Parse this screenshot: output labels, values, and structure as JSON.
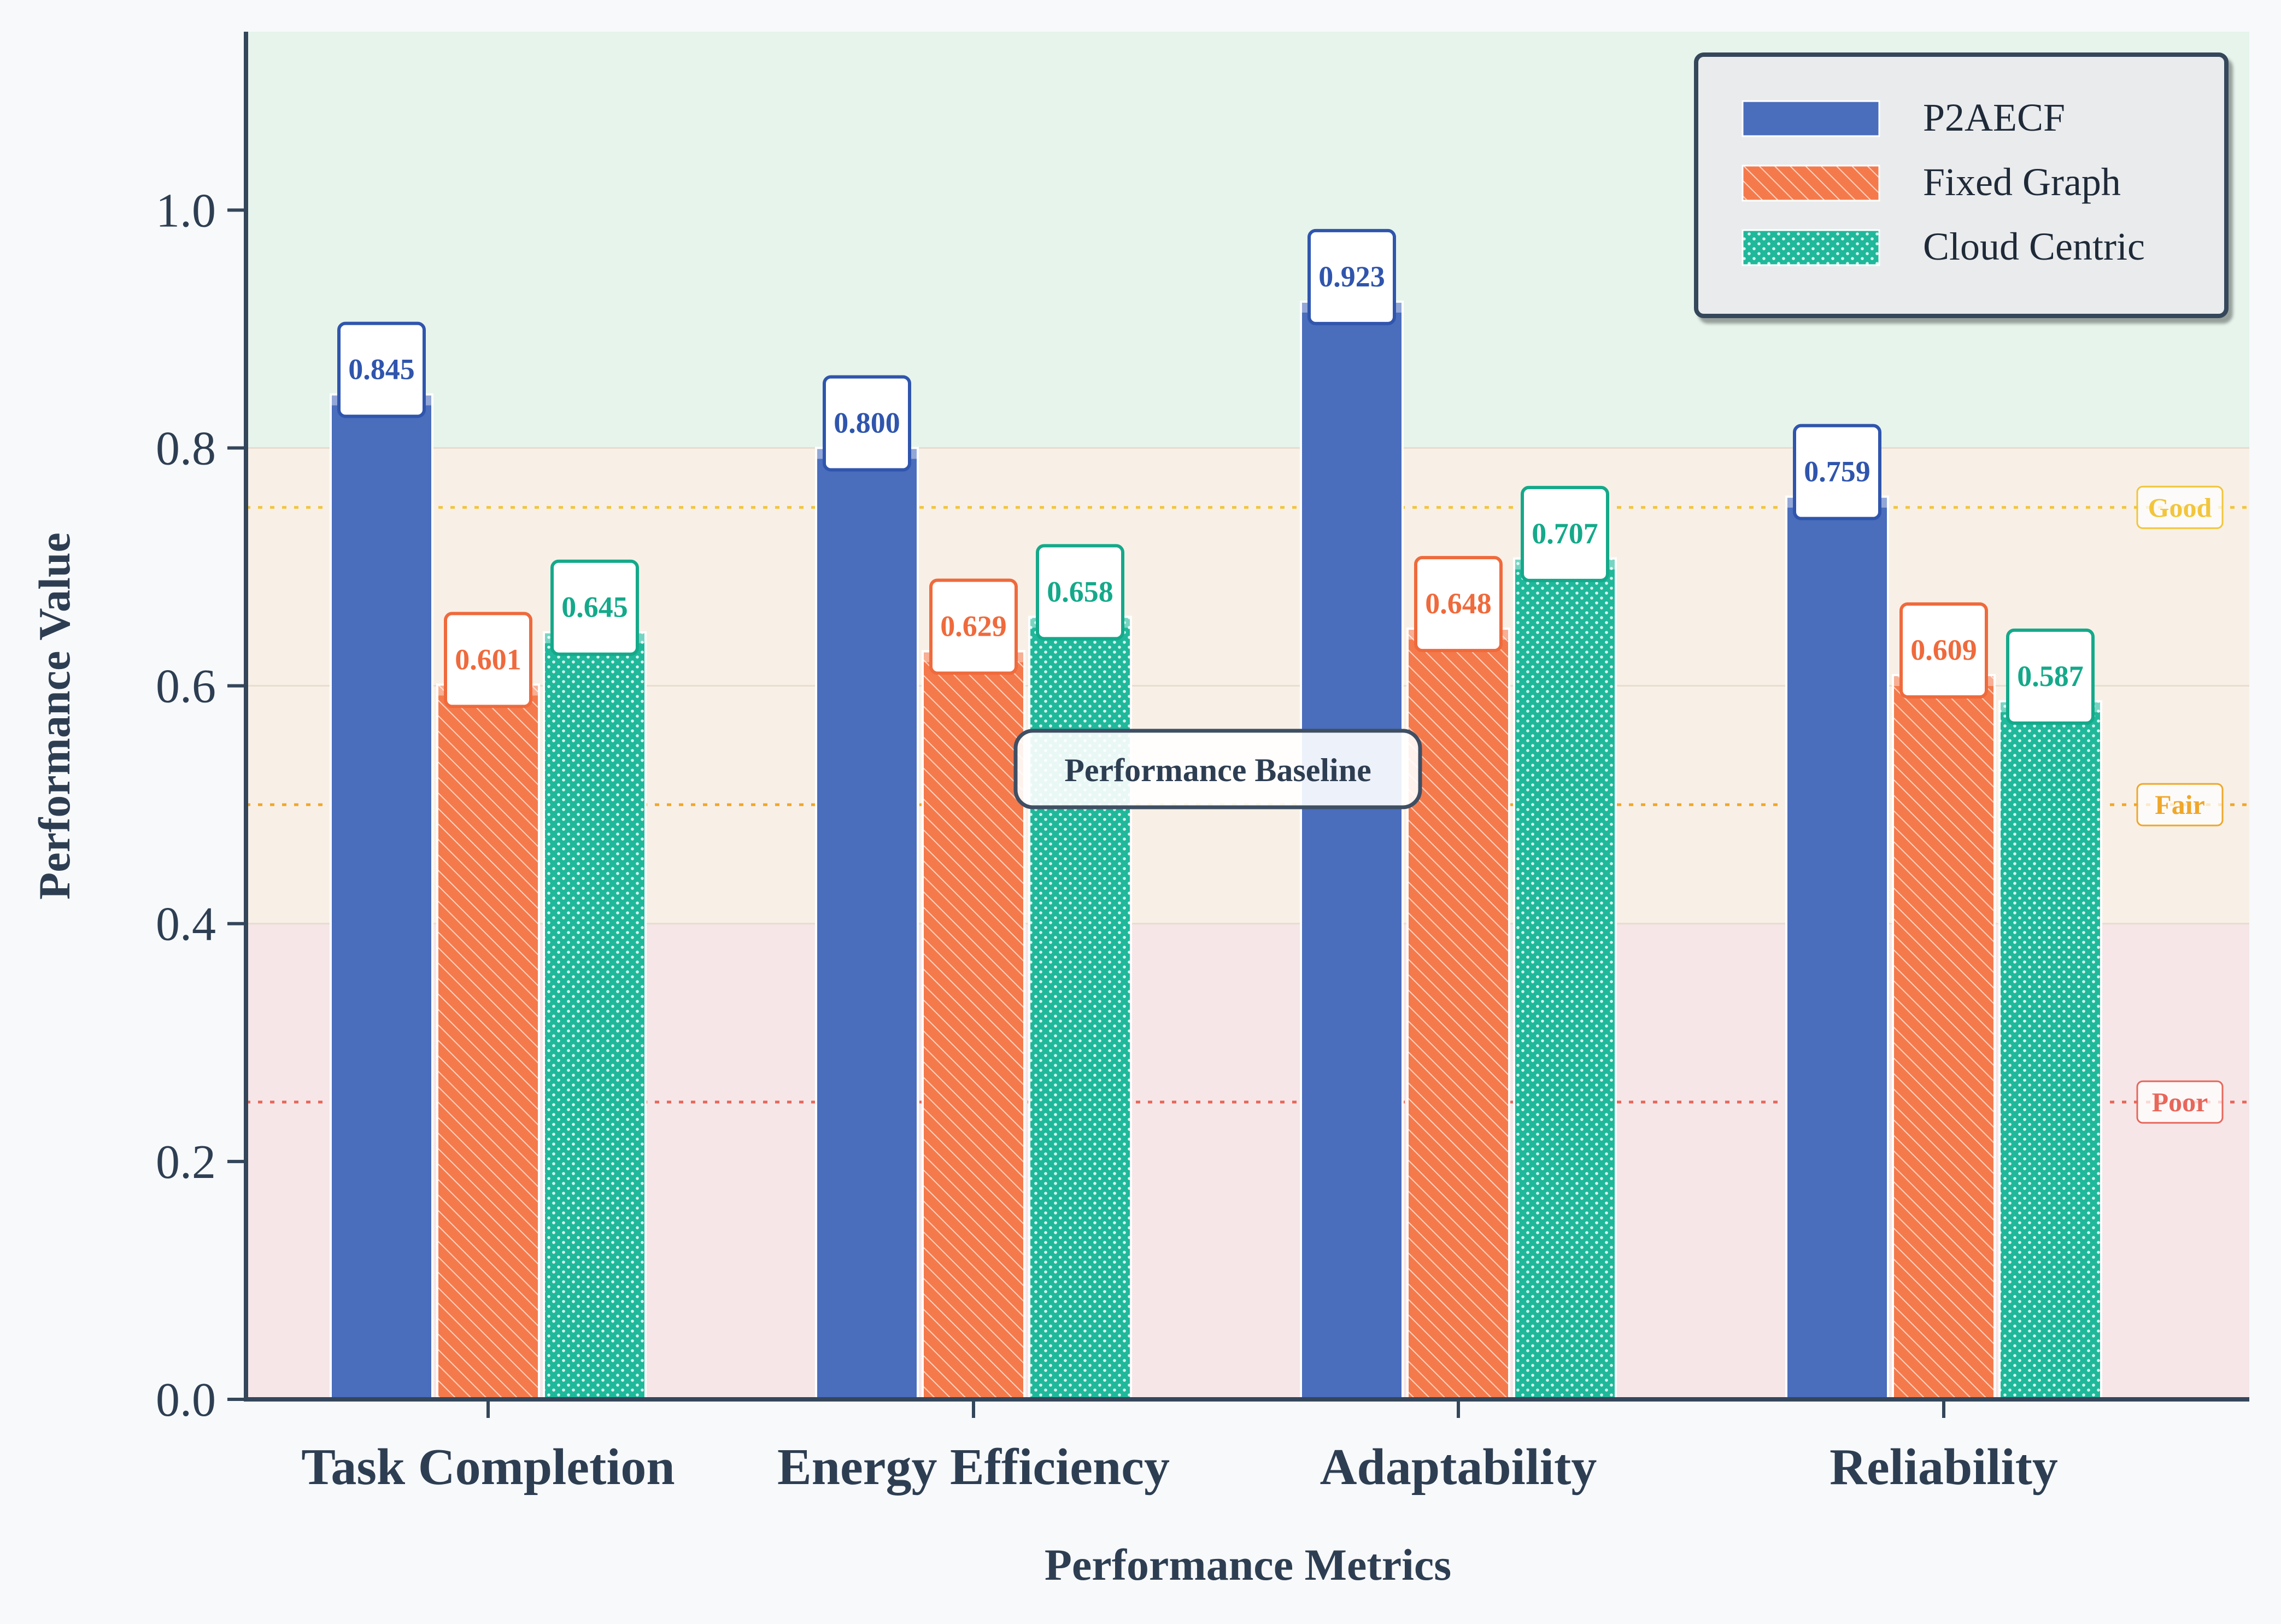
{
  "chart_data": {
    "type": "bar",
    "categories": [
      "Task Completion",
      "Energy Efficiency",
      "Adaptability",
      "Reliability"
    ],
    "series": [
      {
        "name": "P2AECF",
        "values": [
          0.845,
          0.8,
          0.923,
          0.759
        ],
        "color": "#4a6dbc",
        "label_color": "#2f55ad",
        "pattern": "solid"
      },
      {
        "name": "Fixed Graph",
        "values": [
          0.601,
          0.629,
          0.648,
          0.609
        ],
        "color": "#f47a4c",
        "label_color": "#ef6a3c",
        "pattern": "hatch"
      },
      {
        "name": "Cloud Centric",
        "values": [
          0.645,
          0.658,
          0.707,
          0.587
        ],
        "color": "#1fb89a",
        "label_color": "#14a98a",
        "pattern": "dots"
      }
    ],
    "value_labels": [
      [
        "0.845",
        "0.800",
        "0.923",
        "0.759"
      ],
      [
        "0.601",
        "0.629",
        "0.648",
        "0.609"
      ],
      [
        "0.645",
        "0.658",
        "0.707",
        "0.587"
      ]
    ],
    "xlabel": "Performance Metrics",
    "ylabel": "Performance Value",
    "ylim": [
      0,
      1.15
    ],
    "yticks": [
      0.0,
      0.2,
      0.4,
      0.6,
      0.8,
      1.0
    ],
    "ytick_labels": [
      "0.0",
      "0.2",
      "0.4",
      "0.6",
      "0.8",
      "1.0"
    ],
    "bands": [
      {
        "from": 0.0,
        "to": 0.4,
        "color": "#f6e6e8"
      },
      {
        "from": 0.4,
        "to": 0.8,
        "color": "#f8f0e6"
      },
      {
        "from": 0.8,
        "to": 1.15,
        "color": "#e6f4ec"
      }
    ],
    "reference_lines": [
      {
        "y": 0.75,
        "label": "Good",
        "color": "#f2c53b"
      },
      {
        "y": 0.5,
        "label": "Fair",
        "color": "#f0a62a"
      },
      {
        "y": 0.25,
        "label": "Poor",
        "color": "#e8665a"
      }
    ],
    "annotation": {
      "text": "Performance Baseline",
      "y": 0.53
    },
    "legend": {
      "position": "top-right"
    },
    "grid": false
  }
}
